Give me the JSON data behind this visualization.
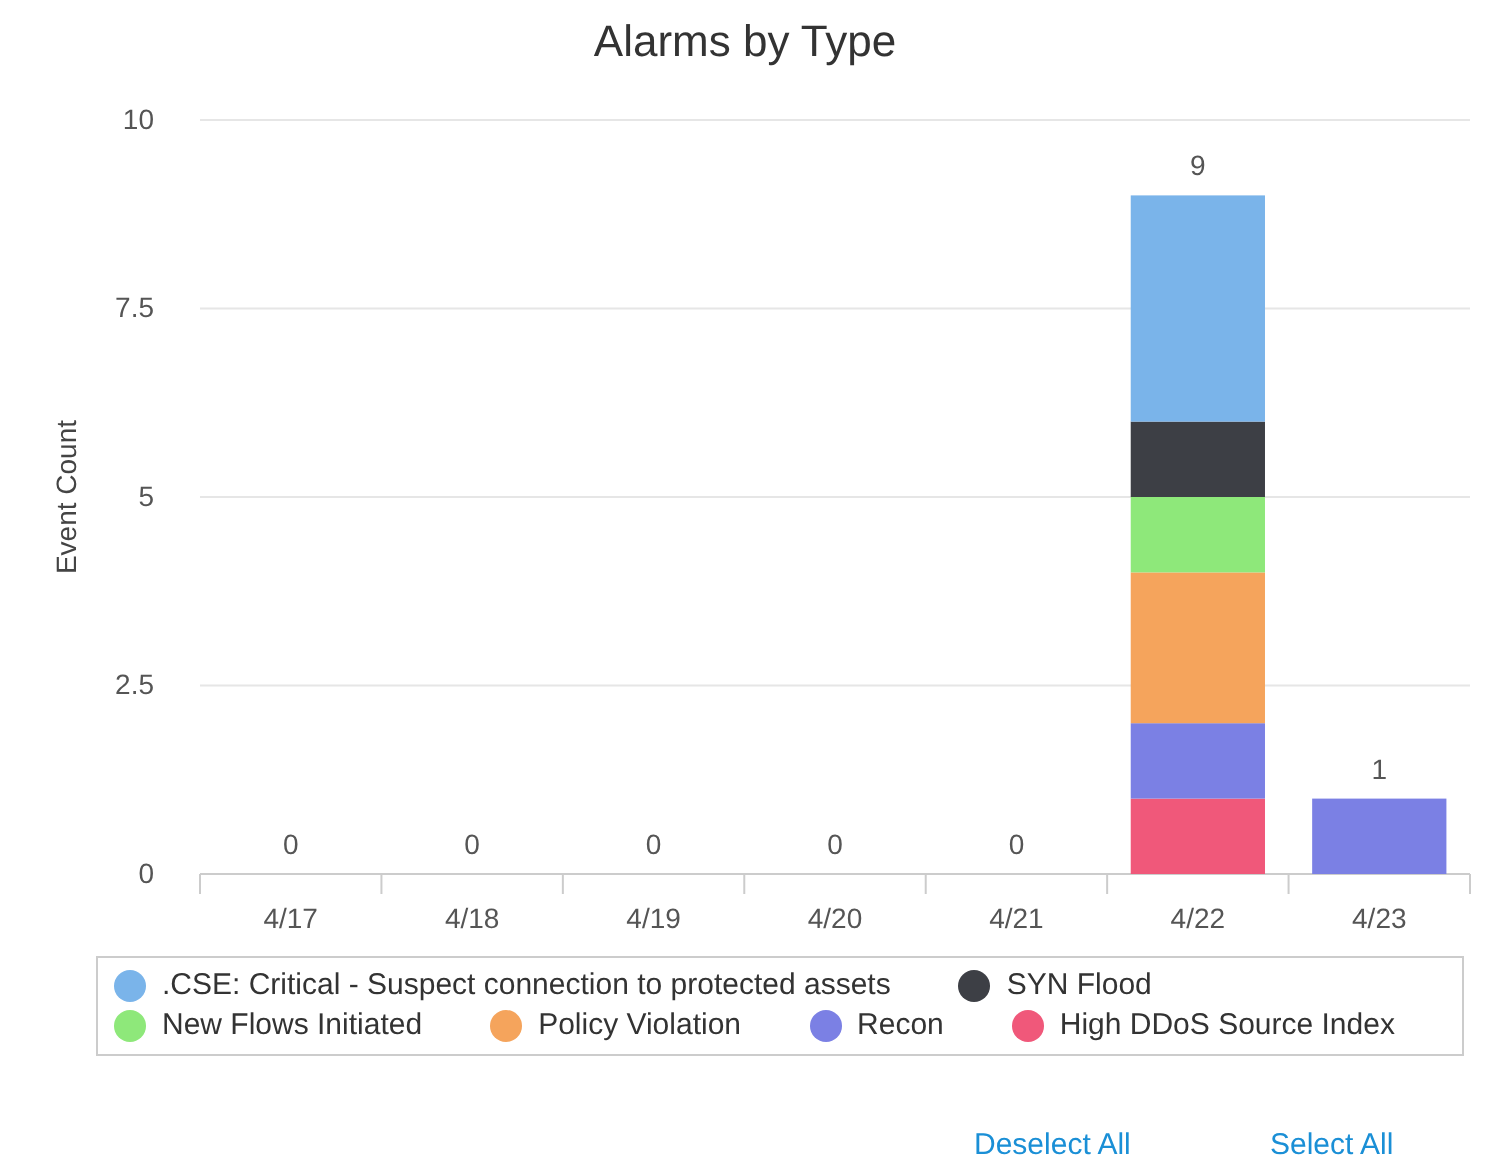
{
  "chart_data": {
    "type": "bar",
    "title": "Alarms by Type",
    "ylabel": "Event Count",
    "stacked": true,
    "categories": [
      "4/17",
      "4/18",
      "4/19",
      "4/20",
      "4/21",
      "4/22",
      "4/23"
    ],
    "series": [
      {
        "name": "High DDoS Source Index",
        "color": "#f0587a",
        "values": [
          0,
          0,
          0,
          0,
          0,
          1,
          0
        ]
      },
      {
        "name": "Recon",
        "color": "#7b80e4",
        "values": [
          0,
          0,
          0,
          0,
          0,
          1,
          1
        ]
      },
      {
        "name": "Policy Violation",
        "color": "#f5a45c",
        "values": [
          0,
          0,
          0,
          0,
          0,
          2,
          0
        ]
      },
      {
        "name": "New Flows Initiated",
        "color": "#8ee87a",
        "values": [
          0,
          0,
          0,
          0,
          0,
          1,
          0
        ]
      },
      {
        "name": "SYN Flood",
        "color": "#3d3f45",
        "values": [
          0,
          0,
          0,
          0,
          0,
          1,
          0
        ]
      },
      {
        "name": ".CSE: Critical - Suspect connection to protected assets",
        "color": "#7ab4ea",
        "values": [
          0,
          0,
          0,
          0,
          0,
          3,
          0
        ]
      }
    ],
    "totals": [
      "0",
      "0",
      "0",
      "0",
      "0",
      "9",
      "1"
    ],
    "ylim": [
      0,
      10
    ],
    "yticks": [
      0,
      2.5,
      5,
      7.5,
      10
    ],
    "grid": "y",
    "legend": "bottom",
    "annotations": [
      "Deselect All",
      "Select All"
    ]
  }
}
